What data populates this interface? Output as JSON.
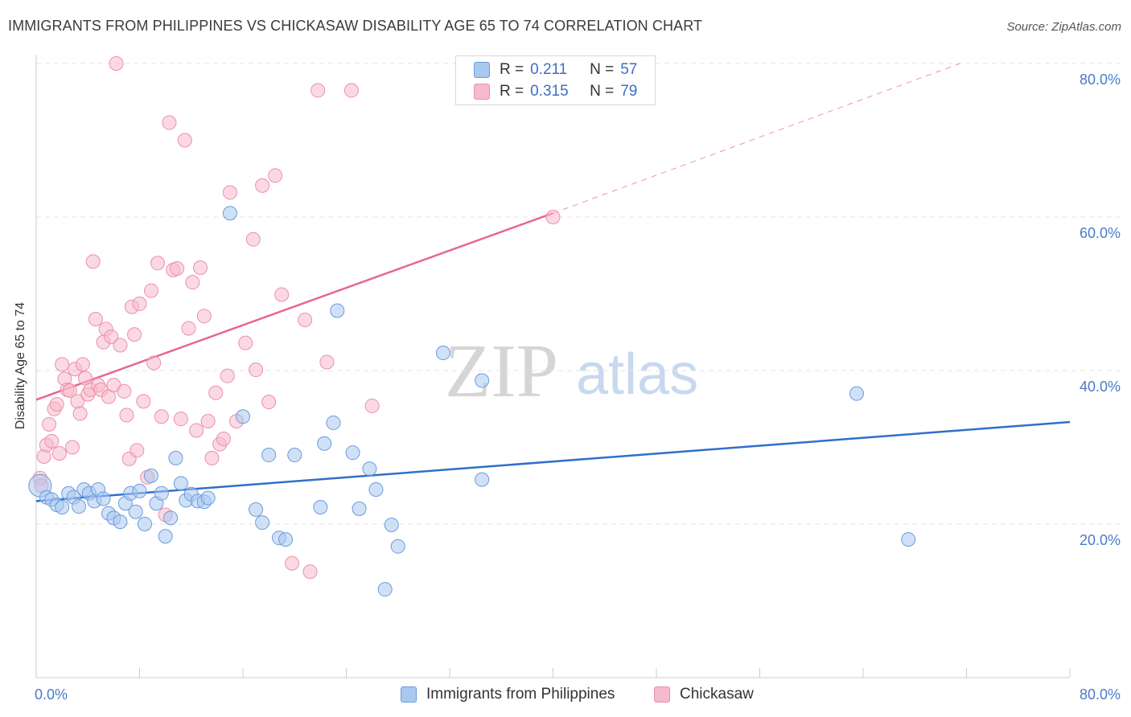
{
  "header": {
    "title": "IMMIGRANTS FROM PHILIPPINES VS CHICKASAW DISABILITY AGE 65 TO 74 CORRELATION CHART",
    "source": "Source: ZipAtlas.com"
  },
  "watermark": {
    "part1": "ZIP",
    "part2": "atlas"
  },
  "legend": {
    "rows": [
      {
        "r_label": "R =",
        "r_value": "0.211",
        "n_label": "N =",
        "n_value": "57",
        "color": "#a9c8f0"
      },
      {
        "r_label": "R =",
        "r_value": "0.315",
        "n_label": "N =",
        "n_value": "79",
        "color": "#f7b9cc"
      }
    ],
    "bottom": [
      {
        "label": "Immigrants from Philippines",
        "color": "#a9c8f0"
      },
      {
        "label": "Chickasaw",
        "color": "#f7b9cc"
      }
    ]
  },
  "colors": {
    "blue_fill": "#a9c8f0",
    "blue_stroke": "#6b9bdc",
    "blue_line": "#2f6fcc",
    "pink_fill": "#f7b9cc",
    "pink_stroke": "#ec8fab",
    "pink_line": "#e8668f",
    "grid": "#e3e3e3",
    "axis": "#cccccc",
    "tick_text": "#4a7cc8"
  },
  "chart_data": {
    "type": "scatter",
    "title": "IMMIGRANTS FROM PHILIPPINES VS CHICKASAW DISABILITY AGE 65 TO 74 CORRELATION CHART",
    "xlabel": "",
    "ylabel": "Disability Age 65 to 74",
    "xlim": [
      0,
      80
    ],
    "ylim": [
      0,
      80
    ],
    "x_tick_labels": [
      "0.0%",
      "80.0%"
    ],
    "y_ticks": [
      20,
      40,
      60,
      80
    ],
    "y_tick_labels": [
      "20.0%",
      "40.0%",
      "60.0%",
      "80.0%"
    ],
    "grid": true,
    "series": [
      {
        "name": "Immigrants from Philippines",
        "r": 0.211,
        "n": 57,
        "trend": {
          "x": [
            0,
            80
          ],
          "y": [
            23.0,
            33.3
          ]
        },
        "points": [
          [
            0.3,
            25.0
          ],
          [
            0.8,
            23.5
          ],
          [
            1.2,
            23.2
          ],
          [
            1.6,
            22.5
          ],
          [
            2.0,
            22.2
          ],
          [
            2.5,
            24.0
          ],
          [
            2.9,
            23.5
          ],
          [
            3.3,
            22.3
          ],
          [
            3.7,
            24.5
          ],
          [
            4.1,
            24.0
          ],
          [
            4.5,
            23.0
          ],
          [
            4.8,
            24.5
          ],
          [
            5.2,
            23.3
          ],
          [
            5.6,
            21.4
          ],
          [
            6.0,
            20.8
          ],
          [
            6.5,
            20.3
          ],
          [
            6.9,
            22.7
          ],
          [
            7.3,
            24.0
          ],
          [
            7.7,
            21.6
          ],
          [
            8.0,
            24.3
          ],
          [
            8.4,
            20.0
          ],
          [
            8.9,
            26.3
          ],
          [
            9.3,
            22.7
          ],
          [
            9.7,
            24.0
          ],
          [
            10.0,
            18.4
          ],
          [
            10.4,
            20.8
          ],
          [
            10.8,
            28.6
          ],
          [
            11.2,
            25.3
          ],
          [
            11.6,
            23.1
          ],
          [
            12.0,
            23.9
          ],
          [
            12.5,
            23.0
          ],
          [
            13.0,
            22.9
          ],
          [
            13.3,
            23.4
          ],
          [
            15.0,
            60.5
          ],
          [
            16.0,
            34.0
          ],
          [
            17.0,
            21.9
          ],
          [
            17.5,
            20.2
          ],
          [
            18.0,
            29.0
          ],
          [
            18.8,
            18.2
          ],
          [
            19.3,
            18.0
          ],
          [
            20.0,
            29.0
          ],
          [
            22.0,
            22.2
          ],
          [
            22.3,
            30.5
          ],
          [
            23.0,
            33.2
          ],
          [
            23.3,
            47.8
          ],
          [
            24.5,
            29.3
          ],
          [
            25.0,
            22.0
          ],
          [
            25.8,
            27.2
          ],
          [
            26.3,
            24.5
          ],
          [
            27.0,
            11.5
          ],
          [
            27.5,
            19.9
          ],
          [
            28.0,
            17.1
          ],
          [
            31.5,
            42.3
          ],
          [
            34.5,
            38.7
          ],
          [
            34.5,
            25.8
          ],
          [
            63.5,
            37.0
          ],
          [
            67.5,
            18.0
          ]
        ]
      },
      {
        "name": "Chickasaw",
        "r": 0.315,
        "n": 79,
        "trend": {
          "x": [
            0,
            40
          ],
          "y": [
            36.2,
            60.5
          ]
        },
        "trend_extension": {
          "x": [
            40,
            71.5
          ],
          "y": [
            60.5,
            80.0
          ]
        },
        "points": [
          [
            0.3,
            26.0
          ],
          [
            0.4,
            25.0
          ],
          [
            0.6,
            28.8
          ],
          [
            0.8,
            30.3
          ],
          [
            1.0,
            33.0
          ],
          [
            1.2,
            30.8
          ],
          [
            1.4,
            35.0
          ],
          [
            1.6,
            35.6
          ],
          [
            1.8,
            29.2
          ],
          [
            2.0,
            40.8
          ],
          [
            2.2,
            38.9
          ],
          [
            2.4,
            37.5
          ],
          [
            2.6,
            37.4
          ],
          [
            2.8,
            30.0
          ],
          [
            3.0,
            40.2
          ],
          [
            3.2,
            36.0
          ],
          [
            3.4,
            34.4
          ],
          [
            3.6,
            40.8
          ],
          [
            3.8,
            39.0
          ],
          [
            4.0,
            36.9
          ],
          [
            4.2,
            37.5
          ],
          [
            4.4,
            54.2
          ],
          [
            4.6,
            46.7
          ],
          [
            4.8,
            38.1
          ],
          [
            5.0,
            37.5
          ],
          [
            5.2,
            43.7
          ],
          [
            5.4,
            45.4
          ],
          [
            5.6,
            36.6
          ],
          [
            5.8,
            44.4
          ],
          [
            6.0,
            38.1
          ],
          [
            6.2,
            80.0
          ],
          [
            6.5,
            43.3
          ],
          [
            6.8,
            37.3
          ],
          [
            7.0,
            34.2
          ],
          [
            7.2,
            28.5
          ],
          [
            7.4,
            48.3
          ],
          [
            7.6,
            44.7
          ],
          [
            7.8,
            29.6
          ],
          [
            8.0,
            48.7
          ],
          [
            8.3,
            36.0
          ],
          [
            8.6,
            26.1
          ],
          [
            8.9,
            50.4
          ],
          [
            9.1,
            41.0
          ],
          [
            9.4,
            54.0
          ],
          [
            9.7,
            34.0
          ],
          [
            10.0,
            21.2
          ],
          [
            10.3,
            72.3
          ],
          [
            10.6,
            53.1
          ],
          [
            10.9,
            53.3
          ],
          [
            11.2,
            33.7
          ],
          [
            11.5,
            70.0
          ],
          [
            11.8,
            45.5
          ],
          [
            12.1,
            51.5
          ],
          [
            12.4,
            32.2
          ],
          [
            12.7,
            53.4
          ],
          [
            13.0,
            47.1
          ],
          [
            13.3,
            33.4
          ],
          [
            13.6,
            28.6
          ],
          [
            13.9,
            37.1
          ],
          [
            14.2,
            30.4
          ],
          [
            14.5,
            31.1
          ],
          [
            14.8,
            39.3
          ],
          [
            15.0,
            63.2
          ],
          [
            15.5,
            33.4
          ],
          [
            16.2,
            43.6
          ],
          [
            16.8,
            57.1
          ],
          [
            17.0,
            40.1
          ],
          [
            17.5,
            64.1
          ],
          [
            18.0,
            35.9
          ],
          [
            18.5,
            65.4
          ],
          [
            19.0,
            49.9
          ],
          [
            19.8,
            14.9
          ],
          [
            20.8,
            46.6
          ],
          [
            21.2,
            13.8
          ],
          [
            21.8,
            76.5
          ],
          [
            22.5,
            41.1
          ],
          [
            24.4,
            76.5
          ],
          [
            26.0,
            35.4
          ],
          [
            40.0,
            60.0
          ]
        ]
      }
    ]
  }
}
